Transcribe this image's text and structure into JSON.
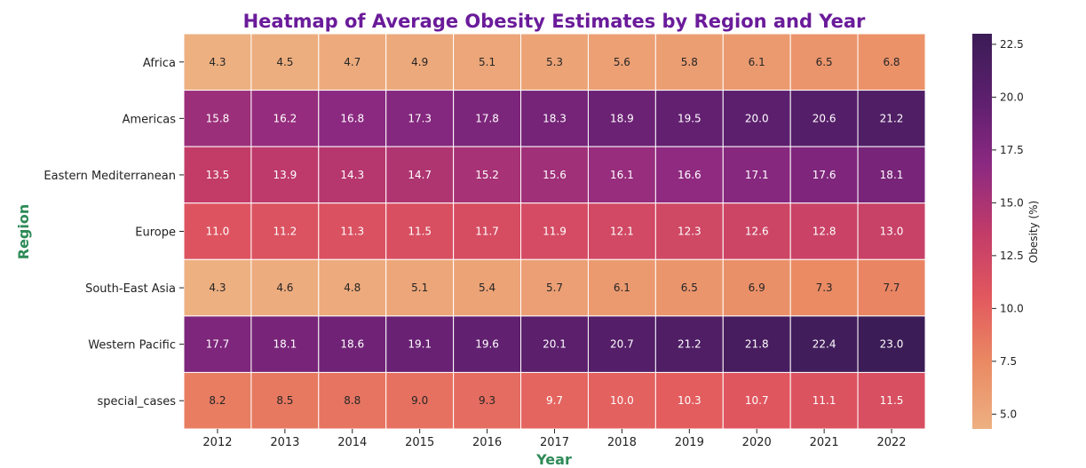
{
  "colors": {
    "title": "#6a1b9a",
    "axis_label": "#2e8b57",
    "colormap": [
      "#edb081",
      "#ea8a63",
      "#e2585e",
      "#c13b69",
      "#8c2981",
      "#5d1f6e",
      "#3b1c56"
    ]
  },
  "chart_data": {
    "type": "heatmap",
    "title": "Heatmap of Average Obesity Estimates by Region and Year",
    "xlabel": "Year",
    "ylabel": "Region",
    "colorbar_label": "Obesity (%)",
    "colorbar_range": [
      4.3,
      23.0
    ],
    "colorbar_ticks": [
      "5.0",
      "7.5",
      "10.0",
      "12.5",
      "15.0",
      "17.5",
      "20.0",
      "22.5"
    ],
    "x": [
      "2012",
      "2013",
      "2014",
      "2015",
      "2016",
      "2017",
      "2018",
      "2019",
      "2020",
      "2021",
      "2022"
    ],
    "y": [
      "Africa",
      "Americas",
      "Eastern Mediterranean",
      "Europe",
      "South-East Asia",
      "Western Pacific",
      "special_cases"
    ],
    "values": [
      [
        4.3,
        4.5,
        4.7,
        4.9,
        5.1,
        5.3,
        5.6,
        5.8,
        6.1,
        6.5,
        6.8
      ],
      [
        15.8,
        16.2,
        16.8,
        17.3,
        17.8,
        18.3,
        18.9,
        19.5,
        20.0,
        20.6,
        21.2
      ],
      [
        13.5,
        13.9,
        14.3,
        14.7,
        15.2,
        15.6,
        16.1,
        16.6,
        17.1,
        17.6,
        18.1
      ],
      [
        11.0,
        11.2,
        11.3,
        11.5,
        11.7,
        11.9,
        12.1,
        12.3,
        12.6,
        12.8,
        13.0
      ],
      [
        4.3,
        4.6,
        4.8,
        5.1,
        5.4,
        5.7,
        6.1,
        6.5,
        6.9,
        7.3,
        7.7
      ],
      [
        17.7,
        18.1,
        18.6,
        19.1,
        19.6,
        20.1,
        20.7,
        21.2,
        21.8,
        22.4,
        23.0
      ],
      [
        8.2,
        8.5,
        8.8,
        9.0,
        9.3,
        9.7,
        10.0,
        10.3,
        10.7,
        11.1,
        11.5
      ]
    ],
    "cell_labels": [
      [
        "4.3",
        "4.5",
        "4.7",
        "4.9",
        "5.1",
        "5.3",
        "5.6",
        "5.8",
        "6.1",
        "6.5",
        "6.8"
      ],
      [
        "15.8",
        "16.2",
        "16.8",
        "17.3",
        "17.8",
        "18.3",
        "18.9",
        "19.5",
        "20.0",
        "20.6",
        "21.2"
      ],
      [
        "13.5",
        "13.9",
        "14.3",
        "14.7",
        "15.2",
        "15.6",
        "16.1",
        "16.6",
        "17.1",
        "17.6",
        "18.1"
      ],
      [
        "11.0",
        "11.2",
        "11.3",
        "11.5",
        "11.7",
        "11.9",
        "12.1",
        "12.3",
        "12.6",
        "12.8",
        "13.0"
      ],
      [
        "4.3",
        "4.6",
        "4.8",
        "5.1",
        "5.4",
        "5.7",
        "6.1",
        "6.5",
        "6.9",
        "7.3",
        "7.7"
      ],
      [
        "17.7",
        "18.1",
        "18.6",
        "19.1",
        "19.6",
        "20.1",
        "20.7",
        "21.2",
        "21.8",
        "22.4",
        "23.0"
      ],
      [
        "8.2",
        "8.5",
        "8.8",
        "9.0",
        "9.3",
        "9.7",
        "10.0",
        "10.3",
        "10.7",
        "11.1",
        "11.5"
      ]
    ],
    "annotate": true,
    "grid": false
  }
}
